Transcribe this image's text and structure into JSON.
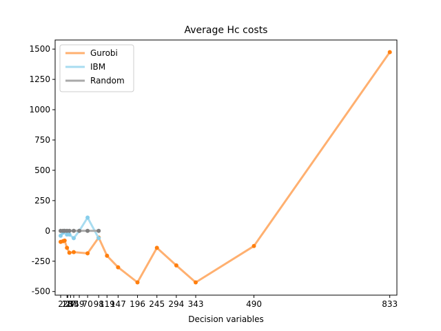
{
  "chart_data": {
    "type": "line",
    "title": "Average Hc costs",
    "xlabel": "Decision variables",
    "ylabel": "",
    "xlim": [
      -12,
      851
    ],
    "ylim": [
      -530,
      1575
    ],
    "x_tick_values": [
      2,
      18,
      20,
      27,
      35,
      49,
      70,
      98,
      119,
      147,
      196,
      245,
      294,
      343,
      490,
      833
    ],
    "x_tick_labels": [
      "2",
      "18",
      "20",
      "27",
      "35",
      "49",
      "70",
      "98",
      "119",
      "147",
      "196",
      "245",
      "294",
      "343",
      "490",
      "833"
    ],
    "y_ticks": [
      -500,
      -250,
      0,
      250,
      500,
      750,
      1000,
      1250,
      1500
    ],
    "grid": false,
    "legend_position": "top-left",
    "series": [
      {
        "name": "Gurobi",
        "color": "#ff7f0e",
        "line_color": "#ffb070",
        "x": [
          2,
          8,
          12,
          18,
          24,
          35,
          70,
          98,
          119,
          147,
          196,
          245,
          294,
          343,
          490,
          833
        ],
        "y": [
          -90,
          -85,
          -80,
          -140,
          -180,
          -175,
          -185,
          -55,
          -205,
          -300,
          -425,
          -140,
          -285,
          -425,
          -125,
          1475
        ]
      },
      {
        "name": "IBM",
        "color": "#87ceeb",
        "line_color": "#a8dcf0",
        "x": [
          2,
          8,
          12,
          18,
          24,
          35,
          49,
          70,
          98
        ],
        "y": [
          -40,
          -15,
          0,
          -30,
          -30,
          -60,
          0,
          110,
          -60
        ]
      },
      {
        "name": "Random",
        "color": "#7f7f7f",
        "line_color": "#a9a9a9",
        "x": [
          2,
          8,
          12,
          18,
          24,
          35,
          49,
          70,
          98
        ],
        "y": [
          0,
          0,
          0,
          0,
          0,
          0,
          0,
          0,
          0
        ]
      }
    ]
  }
}
